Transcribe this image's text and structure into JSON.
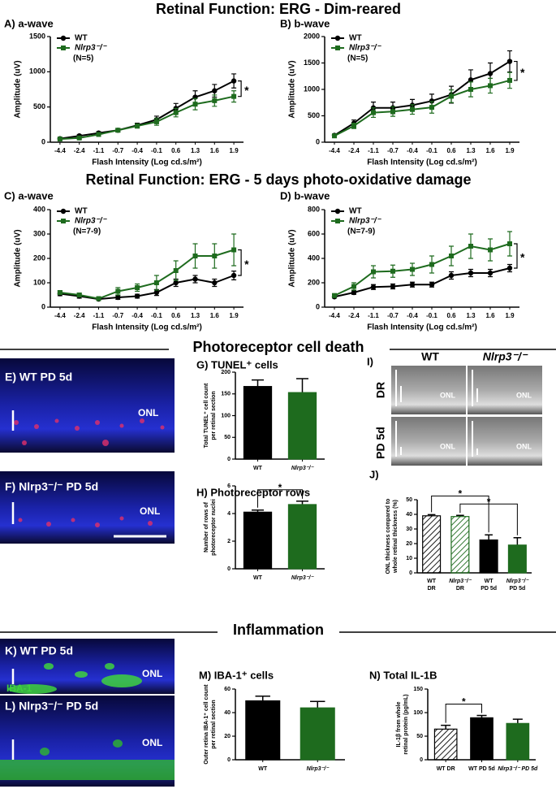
{
  "titles": [
    "Retinal Function: ERG - Dim-reared",
    "Retinal Function: ERG - 5 days photo-oxidative damage"
  ],
  "sections": [
    "Photoreceptor cell death",
    "Inflammation"
  ],
  "images": [
    {
      "label": "E) WT PD 5d",
      "onl": "ONL"
    },
    {
      "label": "F) Nlrp3⁻/⁻ PD 5d",
      "onl": "ONL"
    },
    {
      "label": "K) WT PD 5d",
      "onl": "ONL",
      "stain": "IBA-1"
    },
    {
      "label": "L) Nlrp3⁻/⁻ PD 5d",
      "onl": "ONL"
    }
  ],
  "panel_i": {
    "label": "I)",
    "columns": [
      "WT",
      "Nlrp3⁻/⁻"
    ],
    "rows": [
      "DR",
      "PD 5d"
    ],
    "onl": [
      "ONL",
      "ONL",
      "ONL",
      "ONL"
    ]
  },
  "chart_data": [
    {
      "type": "line",
      "title": "A) a-wave",
      "xlabel": "Flash Intensity (Log cd.s/m²)",
      "ylabel": "Amplitude (uV)",
      "note": "(N=5)",
      "categories": [
        "-4.4",
        "-2.4",
        "-1.1",
        "-0.7",
        "-0.4",
        "-0.1",
        "0.6",
        "1.3",
        "1.6",
        "1.9"
      ],
      "ylim": [
        0,
        1500
      ],
      "yticks": [
        0,
        500,
        1000,
        1500
      ],
      "stars": [
        "*"
      ],
      "series": [
        {
          "name": "WT",
          "color": "#000000",
          "marker": "circle",
          "values": [
            50,
            90,
            130,
            170,
            240,
            320,
            480,
            640,
            730,
            870
          ],
          "errors": [
            10,
            15,
            20,
            25,
            30,
            50,
            70,
            90,
            90,
            100
          ]
        },
        {
          "name": "Nlrp3⁻/⁻",
          "color": "#1e6b1e",
          "marker": "square",
          "values": [
            45,
            60,
            110,
            170,
            230,
            290,
            420,
            540,
            590,
            650
          ],
          "errors": [
            10,
            15,
            20,
            25,
            30,
            50,
            60,
            80,
            80,
            80
          ]
        }
      ]
    },
    {
      "type": "line",
      "title": "B) b-wave",
      "xlabel": "Flash Intensity (Log cd.s/m²)",
      "ylabel": "Amplitude (uV)",
      "note": "(N=5)",
      "categories": [
        "-4.4",
        "-2.4",
        "-1.1",
        "-0.7",
        "-0.4",
        "-0.1",
        "0.6",
        "1.3",
        "1.6",
        "1.9"
      ],
      "ylim": [
        0,
        2000
      ],
      "yticks": [
        0,
        500,
        1000,
        1500,
        2000
      ],
      "stars": [
        "*"
      ],
      "series": [
        {
          "name": "WT",
          "color": "#000000",
          "marker": "circle",
          "values": [
            130,
            360,
            650,
            650,
            700,
            780,
            900,
            1180,
            1300,
            1530
          ],
          "errors": [
            20,
            60,
            110,
            110,
            110,
            130,
            160,
            190,
            200,
            200
          ]
        },
        {
          "name": "Nlrp3⁻/⁻",
          "color": "#1e6b1e",
          "marker": "square",
          "values": [
            120,
            310,
            560,
            580,
            620,
            660,
            870,
            1000,
            1070,
            1170
          ],
          "errors": [
            20,
            50,
            90,
            90,
            90,
            110,
            120,
            140,
            140,
            150
          ]
        }
      ]
    },
    {
      "type": "line",
      "title": "C) a-wave",
      "xlabel": "Flash Intensity (Log cd.s/m²)",
      "ylabel": "Amplitude (uV)",
      "note": "(N=7-9)",
      "categories": [
        "-4.4",
        "-2.4",
        "-1.1",
        "-0.7",
        "-0.4",
        "-0.1",
        "0.6",
        "1.3",
        "1.6",
        "1.9"
      ],
      "ylim": [
        0,
        400
      ],
      "yticks": [
        0,
        100,
        200,
        300,
        400
      ],
      "stars": [
        "*"
      ],
      "series": [
        {
          "name": "WT",
          "color": "#000000",
          "marker": "circle",
          "values": [
            55,
            45,
            33,
            40,
            45,
            60,
            100,
            115,
            100,
            130
          ],
          "errors": [
            8,
            8,
            6,
            8,
            8,
            12,
            15,
            15,
            15,
            18
          ]
        },
        {
          "name": "Nlrp3⁻/⁻",
          "color": "#1e6b1e",
          "marker": "square",
          "values": [
            60,
            50,
            35,
            65,
            80,
            100,
            150,
            210,
            210,
            235
          ],
          "errors": [
            8,
            8,
            8,
            15,
            15,
            30,
            40,
            50,
            50,
            65
          ]
        }
      ]
    },
    {
      "type": "line",
      "title": "D) b-wave",
      "xlabel": "Flash Intensity (Log cd.s/m²)",
      "ylabel": "Amplitude (uV)",
      "note": "(N=7-9)",
      "categories": [
        "-4.4",
        "-2.4",
        "-1.1",
        "-0.7",
        "-0.4",
        "-0.1",
        "0.6",
        "1.3",
        "1.6",
        "1.9"
      ],
      "ylim": [
        0,
        800
      ],
      "yticks": [
        0,
        200,
        400,
        600,
        800
      ],
      "stars": [
        "*"
      ],
      "series": [
        {
          "name": "WT",
          "color": "#000000",
          "marker": "circle",
          "values": [
            85,
            120,
            165,
            170,
            185,
            185,
            260,
            280,
            280,
            320
          ],
          "errors": [
            10,
            15,
            20,
            20,
            20,
            20,
            30,
            30,
            30,
            30
          ]
        },
        {
          "name": "Nlrp3⁻/⁻",
          "color": "#1e6b1e",
          "marker": "square",
          "values": [
            95,
            170,
            290,
            295,
            310,
            350,
            420,
            500,
            470,
            520
          ],
          "errors": [
            15,
            30,
            50,
            50,
            50,
            70,
            80,
            100,
            90,
            100
          ]
        }
      ]
    },
    {
      "type": "bar",
      "title": "G) TUNEL⁺ cells",
      "ylabel": [
        "Total TUNEL⁺ cell count",
        "per retinal section"
      ],
      "categories": [
        "WT",
        "Nlrp3⁻/⁻"
      ],
      "values": [
        167,
        153
      ],
      "errors": [
        15,
        32
      ],
      "colors": [
        "#000000",
        "#1e6b1e"
      ],
      "hatch": [
        false,
        false
      ],
      "ylim": [
        0,
        200
      ],
      "yticks": [
        0,
        50,
        100,
        150,
        200
      ],
      "stars": []
    },
    {
      "type": "bar",
      "title": "H) Photoreceptor rows",
      "ylabel": [
        "Number of rows of",
        "photoreceptor nuclei"
      ],
      "categories": [
        "WT",
        "Nlrp3⁻/⁻"
      ],
      "values": [
        4.1,
        4.65
      ],
      "errors": [
        0.15,
        0.25
      ],
      "colors": [
        "#000000",
        "#1e6b1e"
      ],
      "hatch": [
        false,
        false
      ],
      "ylim": [
        0,
        6
      ],
      "yticks": [
        0,
        2,
        4,
        6
      ],
      "stars": [
        "*"
      ]
    },
    {
      "type": "bar",
      "title": "J)",
      "ylabel": [
        "ONL thickness compared to",
        "whole retinal thickness (%)"
      ],
      "categories": [
        [
          "WT",
          "DR"
        ],
        [
          "Nlrp3⁻/⁻",
          "DR"
        ],
        [
          "WT",
          "PD 5d"
        ],
        [
          "Nlrp3⁻/⁻",
          "PD 5d"
        ]
      ],
      "values": [
        39,
        38.5,
        22.5,
        19
      ],
      "errors": [
        0.8,
        0.8,
        3.5,
        5
      ],
      "colors": [
        "#000000",
        "#1e6b1e",
        "#000000",
        "#1e6b1e"
      ],
      "hatch": [
        true,
        true,
        false,
        false
      ],
      "ylim": [
        0,
        50
      ],
      "yticks": [
        0,
        10,
        20,
        30,
        40,
        50
      ],
      "stars": [
        "*",
        "*"
      ]
    },
    {
      "type": "bar",
      "title": "M) IBA-1⁺ cells",
      "ylabel": [
        "Outer retina IBA-1⁺ cell count",
        "per retinal section"
      ],
      "categories": [
        "WT",
        "Nlrp3⁻/⁻"
      ],
      "values": [
        50,
        44
      ],
      "errors": [
        4,
        5.5
      ],
      "colors": [
        "#000000",
        "#1e6b1e"
      ],
      "hatch": [
        false,
        false
      ],
      "ylim": [
        0,
        60
      ],
      "yticks": [
        0,
        20,
        40,
        60
      ],
      "stars": []
    },
    {
      "type": "bar",
      "title": "N) Total IL-1B",
      "ylabel": [
        "IL-1β from whole",
        "retinal protein (pg/mL)"
      ],
      "categories": [
        "WT DR",
        "WT PD 5d",
        "Nlrp3⁻/⁻ PD 5d"
      ],
      "values": [
        65,
        89,
        77
      ],
      "errors": [
        8,
        5,
        9
      ],
      "colors": [
        "#000000",
        "#000000",
        "#1e6b1e"
      ],
      "hatch": [
        true,
        false,
        false
      ],
      "ylim": [
        0,
        150
      ],
      "yticks": [
        0,
        50,
        100,
        150
      ],
      "stars": [
        "*"
      ]
    }
  ]
}
